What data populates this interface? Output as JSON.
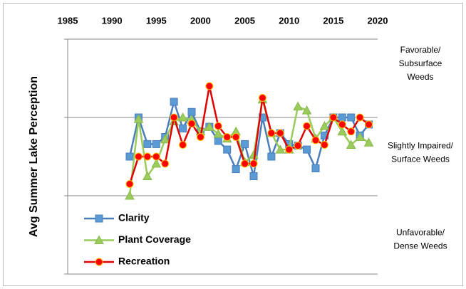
{
  "chart_data": {
    "type": "line",
    "y_label": "Avg Summer Lake Perception",
    "x": [
      1992,
      1993,
      1994,
      1995,
      1996,
      1997,
      1998,
      1999,
      2000,
      2001,
      2002,
      2003,
      2004,
      2005,
      2006,
      2007,
      2008,
      2009,
      2010,
      2011,
      2012,
      2013,
      2014,
      2015,
      2016,
      2017,
      2018,
      2019
    ],
    "series": [
      {
        "name": "Clarity",
        "color": "#4a7ebb",
        "marker": "square",
        "marker_color": "#5b9bd5",
        "values": [
          1.5,
          2.0,
          1.66,
          1.66,
          1.75,
          2.2,
          1.86,
          2.07,
          1.82,
          1.88,
          1.7,
          1.59,
          1.34,
          1.66,
          1.25,
          2.0,
          1.5,
          1.8,
          1.66,
          1.64,
          1.59,
          1.35,
          1.77,
          2.0,
          2.0,
          2.0,
          1.77,
          1.91
        ]
      },
      {
        "name": "Plant Coverage",
        "color": "#9bcb5b",
        "marker": "triangle",
        "marker_color": "#9bcb5b",
        "values": [
          1.0,
          1.98,
          1.25,
          1.41,
          1.72,
          1.95,
          2.0,
          1.97,
          1.82,
          1.88,
          1.79,
          1.73,
          1.82,
          1.43,
          1.52,
          2.23,
          1.8,
          1.59,
          1.59,
          2.14,
          2.09,
          1.73,
          1.89,
          2.0,
          1.82,
          1.65,
          1.75,
          1.68
        ]
      },
      {
        "name": "Recreation",
        "color": "#e00000",
        "marker": "circle",
        "marker_color": "#ff0000",
        "values": [
          1.15,
          1.5,
          1.5,
          1.5,
          1.41,
          2.0,
          1.65,
          1.92,
          1.75,
          2.4,
          1.89,
          1.75,
          1.75,
          1.41,
          1.41,
          2.25,
          1.8,
          1.8,
          1.59,
          1.64,
          1.89,
          1.71,
          1.65,
          2.0,
          1.91,
          1.82,
          2.0,
          1.91
        ]
      }
    ],
    "xlim": [
      1985,
      2020
    ],
    "xticks": [
      1985,
      1990,
      1995,
      2000,
      2005,
      2010,
      2015,
      2020
    ],
    "ylim": [
      0,
      3
    ],
    "yticks": [
      0,
      1,
      2,
      3
    ],
    "grid": true,
    "annotations": [
      [
        "Favorable/",
        "Subsurface",
        "Weeds"
      ],
      [
        "Slightly Impaired/",
        "Surface Weeds"
      ],
      [
        "Unfavorable/",
        "Dense Weeds"
      ]
    ],
    "legend": "lower-left"
  }
}
